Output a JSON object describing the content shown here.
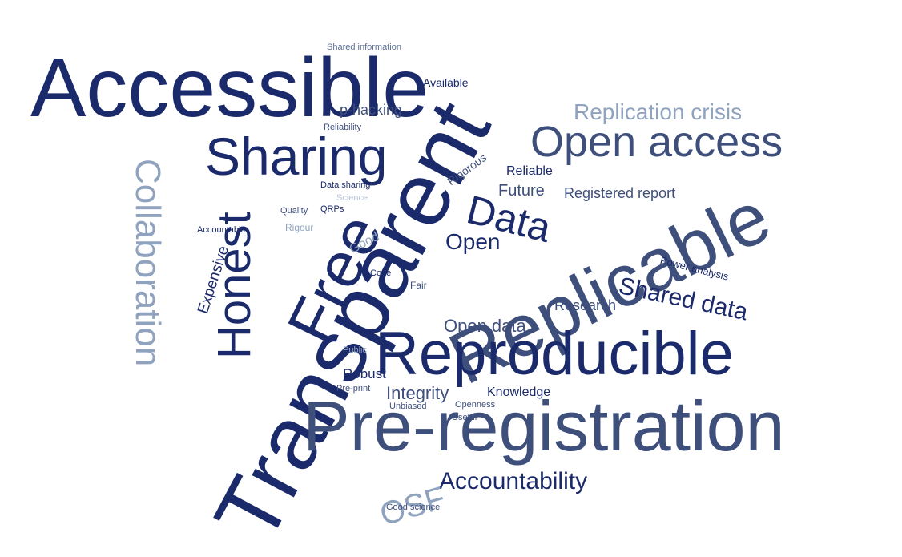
{
  "colors": {
    "background": "#ffffff",
    "navy": "#1b2a6b",
    "slate": "#3e4f7c",
    "steel": "#5b6f95",
    "light": "#8fa3bf",
    "pale": "#b5c2d4"
  },
  "words": [
    {
      "text": "Accessible",
      "color": "navy"
    },
    {
      "text": "Transparent",
      "color": "navy"
    },
    {
      "text": "Replicable",
      "color": "slate"
    },
    {
      "text": "Pre-registration",
      "color": "slate"
    },
    {
      "text": "Reproducible",
      "color": "navy"
    },
    {
      "text": "Open access",
      "color": "slate"
    },
    {
      "text": "Sharing",
      "color": "navy"
    },
    {
      "text": "Free",
      "color": "navy"
    },
    {
      "text": "Honest",
      "color": "navy"
    },
    {
      "text": "Collaboration",
      "color": "light"
    },
    {
      "text": "Data",
      "color": "navy"
    },
    {
      "text": "Replication crisis",
      "color": "light"
    },
    {
      "text": "Shared data",
      "color": "navy"
    },
    {
      "text": "Accountability",
      "color": "navy"
    },
    {
      "text": "OSF",
      "color": "light"
    },
    {
      "text": "Open",
      "color": "navy"
    },
    {
      "text": "Open data",
      "color": "slate"
    },
    {
      "text": "Integrity",
      "color": "slate"
    },
    {
      "text": "Future",
      "color": "slate"
    },
    {
      "text": "Registered report",
      "color": "slate"
    },
    {
      "text": "Expensive",
      "color": "navy"
    },
    {
      "text": "Research",
      "color": "slate"
    },
    {
      "text": "Knowledge",
      "color": "navy"
    },
    {
      "text": "Robust",
      "color": "navy"
    },
    {
      "text": "p-hacking",
      "color": "slate"
    },
    {
      "text": "Reliable",
      "color": "navy"
    },
    {
      "text": "Available",
      "color": "navy"
    },
    {
      "text": "Power analysis",
      "color": "navy"
    },
    {
      "text": "Rigorous",
      "color": "slate"
    },
    {
      "text": "Reliability",
      "color": "slate"
    },
    {
      "text": "Shared information",
      "color": "steel"
    },
    {
      "text": "Data sharing",
      "color": "navy"
    },
    {
      "text": "Quality",
      "color": "slate"
    },
    {
      "text": "QRPs",
      "color": "navy"
    },
    {
      "text": "Accountable",
      "color": "navy"
    },
    {
      "text": "Rigour",
      "color": "light"
    },
    {
      "text": "Good",
      "color": "light"
    },
    {
      "text": "Science",
      "color": "pale"
    },
    {
      "text": "Code",
      "color": "navy"
    },
    {
      "text": "Fair",
      "color": "slate"
    },
    {
      "text": "Public",
      "color": "light"
    },
    {
      "text": "Pre-print",
      "color": "slate"
    },
    {
      "text": "Unbiased",
      "color": "slate"
    },
    {
      "text": "Openness",
      "color": "slate"
    },
    {
      "text": "Useful",
      "color": "slate"
    },
    {
      "text": "Good science",
      "color": "slate"
    }
  ]
}
